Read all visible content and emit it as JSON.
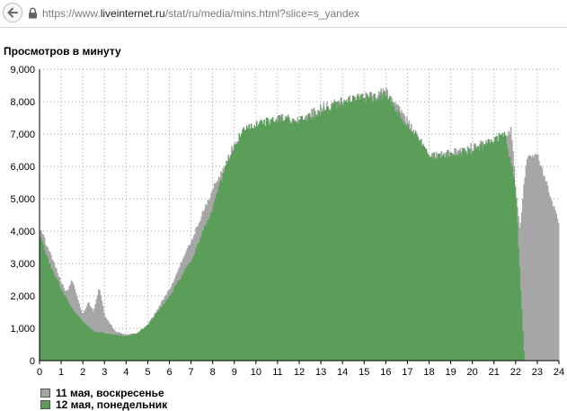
{
  "browser": {
    "url_prefix": "https://www.",
    "url_host": "liveinternet.ru",
    "url_path": "/stat/ru/media/mins.html?slice=s_yandex"
  },
  "chart_data": {
    "type": "bar",
    "title": "Просмотров в минуту",
    "xlabel": "",
    "ylabel": "",
    "xlim": [
      0,
      24
    ],
    "ylim": [
      0,
      9000
    ],
    "x_ticks": [
      "0",
      "1",
      "2",
      "3",
      "4",
      "5",
      "6",
      "7",
      "8",
      "9",
      "10",
      "11",
      "12",
      "13",
      "14",
      "15",
      "16",
      "17",
      "18",
      "19",
      "20",
      "21",
      "22",
      "23",
      "24"
    ],
    "y_ticks": [
      "0",
      "1,000",
      "2,000",
      "3,000",
      "4,000",
      "5,000",
      "6,000",
      "7,000",
      "8,000",
      "9,000"
    ],
    "y_tick_values": [
      0,
      1000,
      2000,
      3000,
      4000,
      5000,
      6000,
      7000,
      8000,
      9000
    ],
    "grid": true,
    "legend_position": "bottom-left",
    "colors": {
      "series_1": "#a6a6a6",
      "series_2": "#5a9e5a"
    },
    "series": [
      {
        "name": "11 мая, воскресенье",
        "x": [
          0,
          0.5,
          1,
          1.25,
          1.5,
          2,
          2.25,
          2.5,
          2.75,
          3,
          3.5,
          4,
          4.5,
          5,
          6,
          7,
          8,
          9,
          10,
          11,
          12,
          13,
          14,
          15,
          16,
          17,
          18,
          19,
          20,
          21,
          21.5,
          21.8,
          22,
          22.2,
          22.5,
          23,
          23.5,
          24
        ],
        "values": [
          4100,
          3300,
          2400,
          2100,
          2500,
          1400,
          1800,
          1500,
          2300,
          1400,
          900,
          800,
          850,
          1100,
          2200,
          3700,
          5300,
          6700,
          7200,
          7500,
          7400,
          7800,
          8000,
          8200,
          8300,
          7400,
          6300,
          6400,
          6600,
          6800,
          6900,
          7100,
          5200,
          4000,
          6300,
          6400,
          5300,
          4200
        ]
      },
      {
        "name": "12 мая, понедельник",
        "x": [
          0,
          0.5,
          1,
          1.5,
          2,
          2.5,
          3,
          3.5,
          4,
          4.5,
          5,
          6,
          7,
          8,
          8.5,
          9,
          9.5,
          10,
          11,
          12,
          13,
          14,
          15,
          16,
          16.5,
          17,
          17.5,
          18,
          19,
          20,
          21,
          21.5,
          22,
          22.2,
          22.4
        ],
        "values": [
          3900,
          2900,
          2200,
          1600,
          1200,
          900,
          850,
          800,
          750,
          850,
          1100,
          2000,
          3100,
          4700,
          5800,
          6700,
          7200,
          7300,
          7500,
          7400,
          7700,
          8000,
          8100,
          8200,
          7700,
          7200,
          6900,
          6300,
          6400,
          6500,
          6800,
          7000,
          5300,
          2500,
          0
        ]
      }
    ]
  }
}
